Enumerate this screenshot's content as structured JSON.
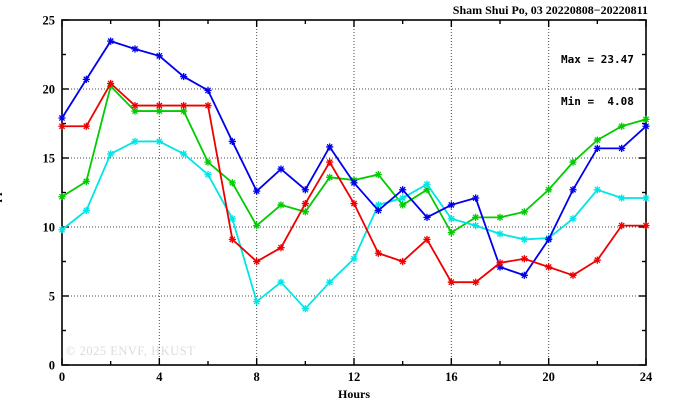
{
  "header": {
    "title": "Sham Shui Po, 03 20220808−20220811"
  },
  "annotations": {
    "max_label": "Max = 23.47",
    "min_label": "Min =  4.08"
  },
  "watermark": "© 2025 ENVF, HKUST",
  "chart_data": {
    "type": "line",
    "title": "Sham Shui Po, 03 20220808−20220811",
    "xlabel": "Hours",
    "ylabel": "ppb",
    "xlim": [
      0,
      24
    ],
    "ylim": [
      0,
      25
    ],
    "grid": true,
    "legend_position": "none",
    "max_value": 23.47,
    "min_value": 4.08,
    "x_major_ticks": [
      0,
      4,
      8,
      12,
      16,
      20,
      24
    ],
    "x_minor_ticks": [
      2,
      6,
      10,
      14,
      18,
      22
    ],
    "y_major_ticks": [
      0,
      5,
      10,
      15,
      20,
      25
    ],
    "y_minor_ticks": [
      2.5,
      7.5,
      12.5,
      17.5,
      22.5
    ],
    "x": [
      0,
      1,
      2,
      3,
      4,
      5,
      6,
      7,
      8,
      9,
      10,
      11,
      12,
      13,
      14,
      15,
      16,
      17,
      18,
      19,
      20,
      21,
      22,
      23,
      24
    ],
    "series": [
      {
        "name": "green",
        "color": "#00cc00",
        "values": [
          12.2,
          13.3,
          20.2,
          18.4,
          18.4,
          18.4,
          14.7,
          13.2,
          10.1,
          11.6,
          11.1,
          13.6,
          13.4,
          13.8,
          11.6,
          12.7,
          9.6,
          10.7,
          10.7,
          11.1,
          12.7,
          14.7,
          16.3,
          17.3,
          17.8
        ]
      },
      {
        "name": "cyan",
        "color": "#00e5e5",
        "values": [
          9.8,
          11.2,
          15.3,
          16.2,
          16.2,
          15.3,
          13.8,
          10.6,
          4.6,
          6.0,
          4.08,
          6.0,
          7.7,
          11.6,
          12.1,
          13.1,
          10.6,
          10.1,
          9.5,
          9.1,
          9.2,
          10.6,
          12.7,
          12.1,
          12.1
        ]
      },
      {
        "name": "blue",
        "color": "#0000ee",
        "values": [
          17.9,
          20.7,
          23.47,
          22.9,
          22.4,
          20.9,
          19.9,
          16.2,
          12.6,
          14.2,
          12.7,
          15.8,
          13.2,
          11.2,
          12.7,
          10.7,
          11.6,
          12.1,
          7.1,
          6.5,
          9.1,
          12.7,
          15.7,
          15.7,
          17.3
        ]
      },
      {
        "name": "red",
        "color": "#ee0000",
        "values": [
          17.3,
          17.3,
          20.4,
          18.8,
          18.8,
          18.8,
          18.8,
          9.1,
          7.5,
          8.5,
          11.7,
          14.7,
          11.7,
          8.1,
          7.5,
          9.1,
          6.0,
          6.0,
          7.4,
          7.7,
          7.1,
          6.5,
          7.6,
          10.1,
          10.1
        ]
      }
    ]
  }
}
